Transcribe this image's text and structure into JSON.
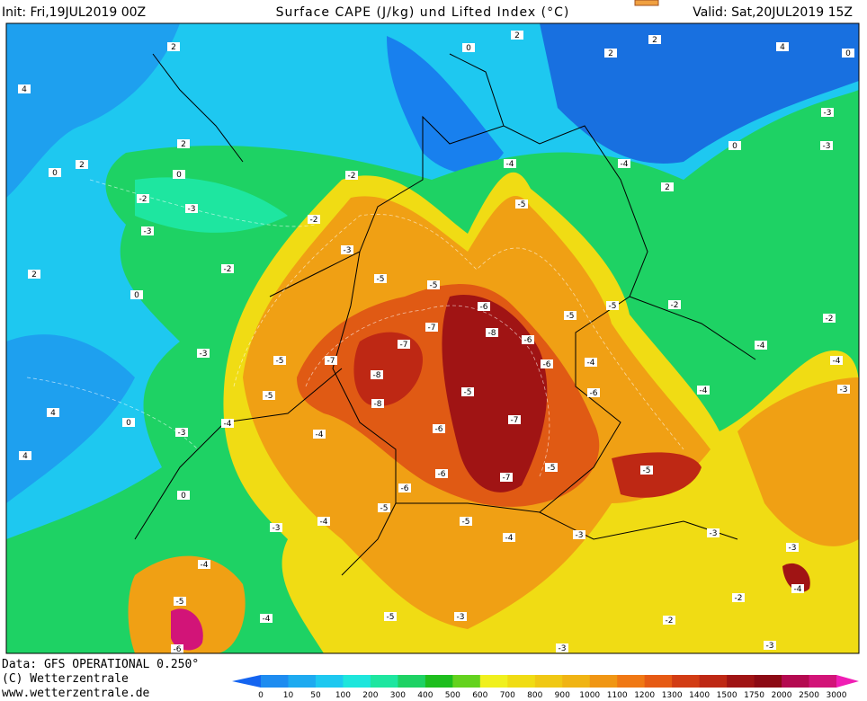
{
  "header": {
    "init": "Init: Fri,19JUL2019 00Z",
    "title": "Surface CAPE (J/kg) und Lifted Index (°C)",
    "valid": "Valid: Sat,20JUL2019 15Z"
  },
  "footer": {
    "data": "Data: GFS OPERATIONAL 0.250°",
    "copyright": "(C) Wetterzentrale",
    "url": "www.wetterzentrale.de"
  },
  "legend": {
    "levels": [
      0,
      10,
      50,
      100,
      200,
      300,
      400,
      500,
      600,
      700,
      800,
      900,
      1000,
      1100,
      1200,
      1300,
      1400,
      1500,
      1750,
      2000,
      2500,
      3000
    ],
    "colors": [
      "#1464f0",
      "#1e8cf0",
      "#1eaaf0",
      "#1ec8f0",
      "#1ee6dc",
      "#1ee6a0",
      "#1ed264",
      "#1ebe1e",
      "#64d21e",
      "#f0f01e",
      "#f0dc14",
      "#f0c814",
      "#f0b414",
      "#f09614",
      "#f07814",
      "#e65a14",
      "#d23c14",
      "#be2814",
      "#a01414",
      "#8c0a14",
      "#b40a50",
      "#d21478",
      "#f01eb4"
    ]
  },
  "lifted_index_labels": [
    2,
    4,
    2,
    2,
    0,
    0,
    -2,
    -3,
    -3,
    -2,
    2,
    0,
    -2,
    -3,
    -2,
    -5,
    -5,
    -6,
    -5,
    -4,
    -7,
    -7,
    -8,
    -6,
    -5,
    -5,
    -2,
    -2,
    -4,
    -6,
    -4,
    -8,
    -7,
    -5,
    -5,
    -3,
    -5,
    -6,
    -4,
    -7,
    -8,
    -6,
    -4,
    -4,
    -3,
    0,
    4,
    4,
    -5,
    -5,
    -7,
    -6,
    -6,
    0,
    -3,
    -4,
    -5,
    -5,
    -4,
    -3,
    -3,
    -3,
    -4,
    -4,
    -5,
    -6,
    -4,
    -5,
    -3,
    -3,
    -2,
    -2,
    0,
    2,
    2,
    0,
    2,
    0,
    -3,
    -3,
    4,
    2,
    -4,
    -4,
    -3,
    -3
  ]
}
